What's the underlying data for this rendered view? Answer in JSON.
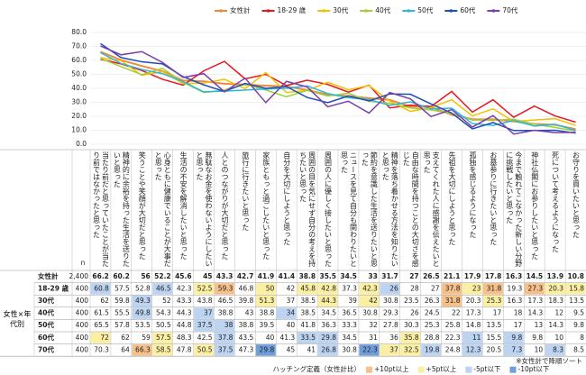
{
  "chart_data": {
    "type": "line",
    "categories": [
      "当たり前だと思っていたことが当たり前ではなかったと思った",
      "精神的に余裕を持った生活を送りたいと思った",
      "笑うことや笑顔が大切だと思った",
      "心身ともに健康でいることが大事だと思った",
      "生活の不安を解消したいと思った",
      "無駄なお金を使わないようにしたいと思った",
      "人とのつながりが大切だと思った",
      "旅行に行きたいと思った",
      "家族ともっと過ごしたいと思った",
      "自分を大切にしようと思った",
      "周囲の目を気にせず自分の考えを持ちたいと思った",
      "周囲の人に優しく接したいと思った",
      "ニュースを見て自分も関わりたいと思った",
      "節約を意識した生活を送りたいと思った",
      "精神を落ち着かせる方法を知りたいと思った",
      "自由な時間を持つことの大切さを感じた",
      "支えてくれた人に感謝を伝えたいと思った",
      "先祖を大切にしようと思った",
      "孤独を感じるようになった",
      "お墓参りに行きたいと思った",
      "今まで触れてこなかった新しい分野に挑戦したいと思った",
      "神社仏閣にお参りしたいと思った",
      "死について考えるようになった",
      "お守りを買いたいと思った"
    ],
    "series": [
      {
        "name": "女性計",
        "n": "2,400",
        "color": "#f08a3c",
        "values": [
          66.2,
          60.2,
          56.0,
          52.2,
          45.6,
          45.0,
          43.3,
          42.7,
          41.9,
          41.4,
          38.8,
          35.5,
          34.5,
          33.0,
          31.7,
          27.0,
          26.5,
          21.1,
          17.9,
          17.8,
          16.3,
          14.5,
          13.9,
          10.8
        ]
      },
      {
        "name": "18-29 歳",
        "n": "400",
        "color": "#e8141e",
        "values": [
          60.8,
          57.5,
          52.8,
          46.5,
          42.3,
          52.5,
          59.3,
          46.8,
          50.0,
          42.0,
          45.8,
          42.8,
          37.3,
          42.3,
          26.0,
          28.0,
          27.0,
          37.8,
          23.0,
          31.8,
          19.3,
          27.3,
          20.3,
          15.8
        ]
      },
      {
        "name": "30代",
        "n": "400",
        "color": "#f2c200",
        "values": [
          62.0,
          59.8,
          49.3,
          52.0,
          43.3,
          43.8,
          46.5,
          39.8,
          51.3,
          37.0,
          38.5,
          44.3,
          39.0,
          42.0,
          30.8,
          23.5,
          26.3,
          31.8,
          20.3,
          25.3,
          16.3,
          17.3,
          18.3,
          13.5
        ]
      },
      {
        "name": "40代",
        "n": "400",
        "color": "#9ed13a",
        "values": [
          61.5,
          55.5,
          49.8,
          54.3,
          44.3,
          37.0,
          38.8,
          43.0,
          38.8,
          34.0,
          38.5,
          34.5,
          36.5,
          30.8,
          29.3,
          26.0,
          24.5,
          22.0,
          17.3,
          17.0,
          18.0,
          14.3,
          12.0,
          9.5
        ]
      },
      {
        "name": "50代",
        "n": "400",
        "color": "#2bb7e0",
        "values": [
          65.5,
          57.8,
          53.5,
          50.5,
          44.8,
          37.5,
          38.0,
          38.8,
          39.5,
          40.0,
          41.8,
          36.3,
          33.3,
          32.0,
          27.8,
          30.3,
          25.3,
          25.8,
          14.8,
          13.5,
          17.0,
          13.0,
          14.3,
          9.8
        ]
      },
      {
        "name": "60代",
        "n": "400",
        "color": "#1f4fb4",
        "values": [
          72.0,
          62.0,
          59.0,
          57.5,
          48.3,
          42.5,
          37.8,
          43.5,
          40.0,
          41.3,
          33.5,
          29.8,
          34.5,
          31.0,
          36.0,
          35.8,
          28.8,
          22.3,
          11.0,
          15.5,
          9.8,
          9.8,
          10.0,
          8.0
        ]
      },
      {
        "name": "70代",
        "n": "400",
        "color": "#7a3fa8",
        "values": [
          70.3,
          64.0,
          66.3,
          58.5,
          47.8,
          50.5,
          37.5,
          47.3,
          29.8,
          45.0,
          41.0,
          26.8,
          30.8,
          22.3,
          37.0,
          32.5,
          19.8,
          24.8,
          12.3,
          20.5,
          7.3,
          10.0,
          8.3,
          8.5
        ]
      }
    ],
    "ylim": [
      0,
      80
    ],
    "yticks": [
      {
        "value": 0,
        "label": "0.0"
      },
      {
        "value": 10,
        "label": "10.0"
      },
      {
        "value": 20,
        "label": "20.0"
      },
      {
        "value": 30,
        "label": "30.0"
      },
      {
        "value": 40,
        "label": "40.0"
      },
      {
        "value": 50,
        "label": "50.0"
      },
      {
        "value": 60,
        "label": "60.0"
      },
      {
        "value": 70,
        "label": "70.0"
      },
      {
        "value": 80,
        "label": "80.0"
      }
    ],
    "grid": true,
    "legend": "top"
  },
  "table": {
    "n_header": "n",
    "group_label": "女性×年代別"
  },
  "footer": {
    "note": "※女性計で降順ソート",
    "hatch_title": "ハッチング定義（女性計比）",
    "hatch": [
      {
        "label": "+10pt以上",
        "color": "#f5c08a"
      },
      {
        "label": "+5pt以上",
        "color": "#fbefa4"
      },
      {
        "label": "-5pt以下",
        "color": "#bcd4f1"
      },
      {
        "label": "-10pt以下",
        "color": "#6e9fdb"
      }
    ]
  }
}
